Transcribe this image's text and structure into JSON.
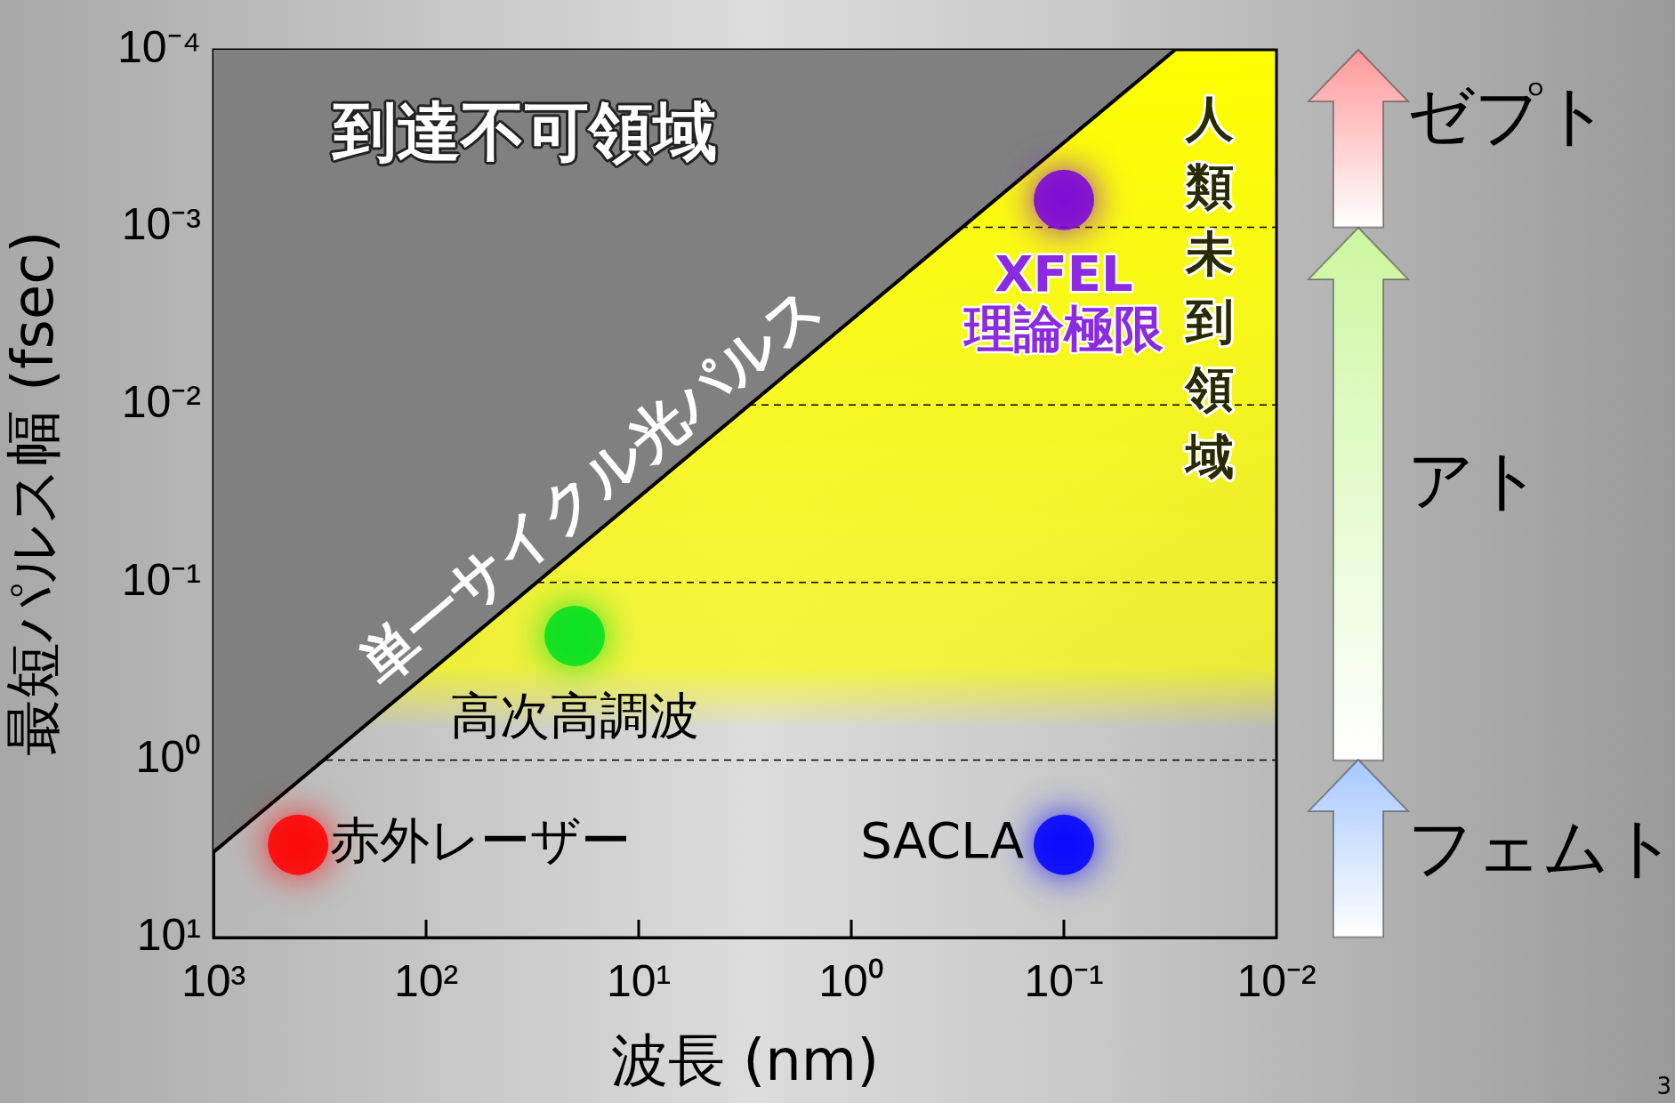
{
  "chart_data": {
    "type": "scatter",
    "xlabel": "波長 (nm)",
    "ylabel": "最短パルス幅 (fsec)",
    "xlim": [
      1000,
      0.01
    ],
    "ylim": [
      10,
      0.0001
    ],
    "xticks": [
      {
        "value": 1000,
        "label": "10³"
      },
      {
        "value": 100,
        "label": "10²"
      },
      {
        "value": 10,
        "label": "10¹"
      },
      {
        "value": 1,
        "label": "10⁰"
      },
      {
        "value": 0.1,
        "label": "10⁻¹"
      },
      {
        "value": 0.01,
        "label": "10⁻²"
      }
    ],
    "yticks": [
      {
        "value": 10,
        "label": "10¹"
      },
      {
        "value": 1,
        "label": "10⁰"
      },
      {
        "value": 0.1,
        "label": "10⁻¹"
      },
      {
        "value": 0.01,
        "label": "10⁻²"
      },
      {
        "value": 0.001,
        "label": "10⁻³"
      },
      {
        "value": 0.0001,
        "label": "10⁻⁴"
      }
    ],
    "log": "xy",
    "grid": "y",
    "line_style": "dashed",
    "marker": "circle",
    "legend": false,
    "series": [
      {
        "type": "area",
        "color": "#808080",
        "marker": "none",
        "x": [
          1000,
          0.03
        ],
        "values": [
          3.3,
          0.0001
        ]
      },
      {
        "name": "赤外レーザー",
        "color": "#ff0000",
        "x": [
          400
        ],
        "values": [
          3
        ]
      },
      {
        "name": "高次高調波",
        "color": "#00e020",
        "x": [
          20
        ],
        "values": [
          0.2
        ]
      },
      {
        "name": "SACLA",
        "color": "#0000ff",
        "x": [
          0.1
        ],
        "values": [
          3
        ]
      },
      {
        "name": "XFEL 理論極限",
        "color": "#7a00e0",
        "x": [
          0.1
        ],
        "values": [
          0.0007
        ]
      }
    ],
    "bands": [
      {
        "axis": "y",
        "from": 0.0001,
        "to": 0.3,
        "label": "人類未到領域",
        "color": "#ffff00"
      }
    ],
    "annotations": [
      "到達不可領域",
      "単一サイクル光パルス",
      "ゼプト",
      "アト",
      "フェムト",
      "3"
    ]
  }
}
